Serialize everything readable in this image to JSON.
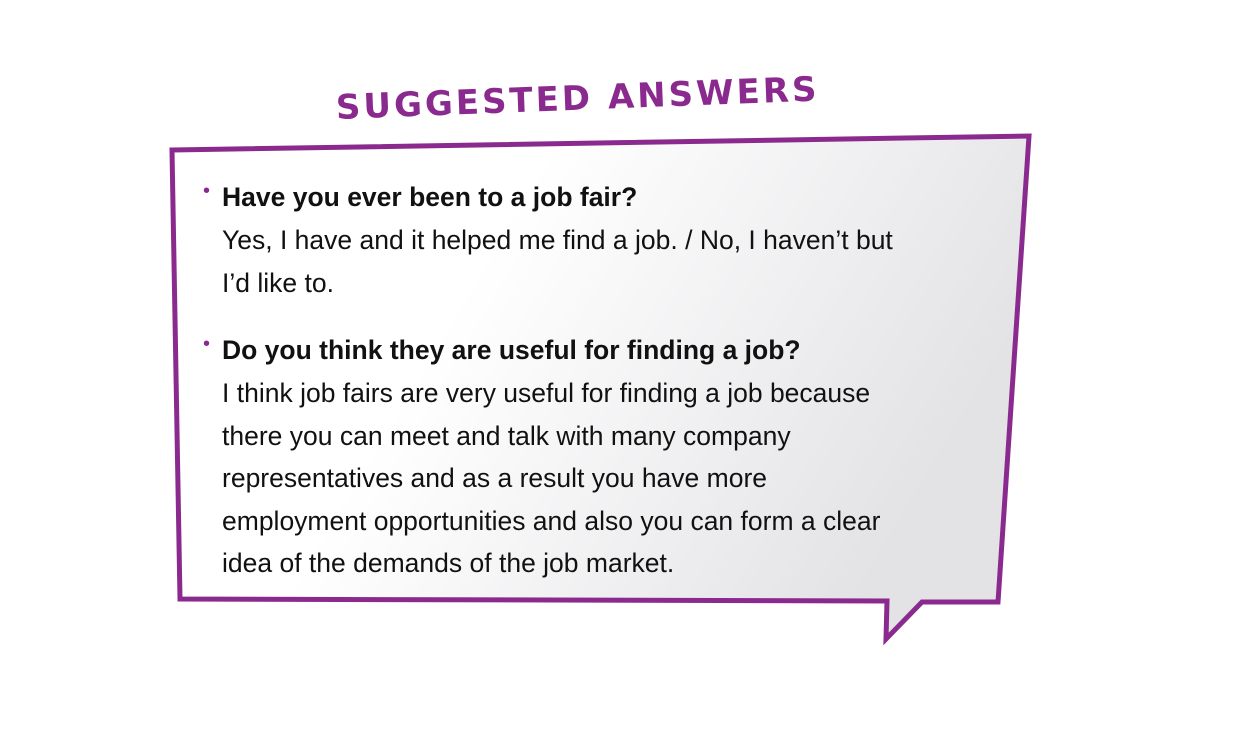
{
  "heading": "SUGGESTED ANSWERS",
  "colors": {
    "accent": "#8b2a8e",
    "bubble_fill_light": "#ffffff",
    "bubble_fill_dark": "#e3e3e6",
    "text": "#111111"
  },
  "items": [
    {
      "question": "Have you ever been to a job fair?",
      "answer_lines": [
        "Yes, I have and it helped me find a job. / No, I haven’t but",
        "I’d like to."
      ]
    },
    {
      "question": "Do you think they are useful for finding a job?",
      "answer_lines": [
        "I think job fairs are very useful for finding a job because",
        "there you can meet and talk with many company",
        "representatives and as a result you have more",
        "employment opportunities and also you can form a clear",
        "idea of the demands of the job market."
      ]
    }
  ]
}
